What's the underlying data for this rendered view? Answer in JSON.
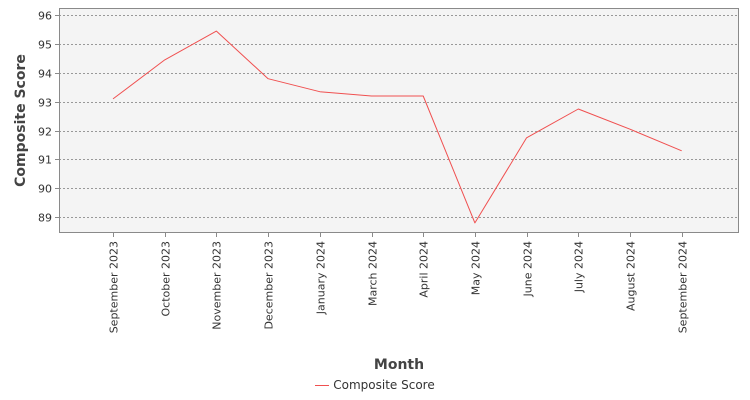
{
  "chart_data": {
    "type": "line",
    "title": "",
    "xlabel": "Month",
    "ylabel": "Composite Score",
    "categories": [
      "September 2023",
      "October 2023",
      "November 2023",
      "December 2023",
      "January 2024",
      "March 2024",
      "April 2024",
      "May 2024",
      "June 2024",
      "July 2024",
      "August 2024",
      "September 2024"
    ],
    "series": [
      {
        "name": "Composite Score",
        "color": "#f05050",
        "values": [
          93.1,
          94.45,
          95.45,
          93.8,
          93.35,
          93.2,
          93.2,
          88.8,
          91.75,
          92.75,
          92.05,
          91.3
        ]
      }
    ],
    "ylim": [
      88.45,
      96.25
    ],
    "yticks": [
      89,
      90,
      91,
      92,
      93,
      94,
      95,
      96
    ],
    "grid": true,
    "legend_position": "bottom-center"
  }
}
